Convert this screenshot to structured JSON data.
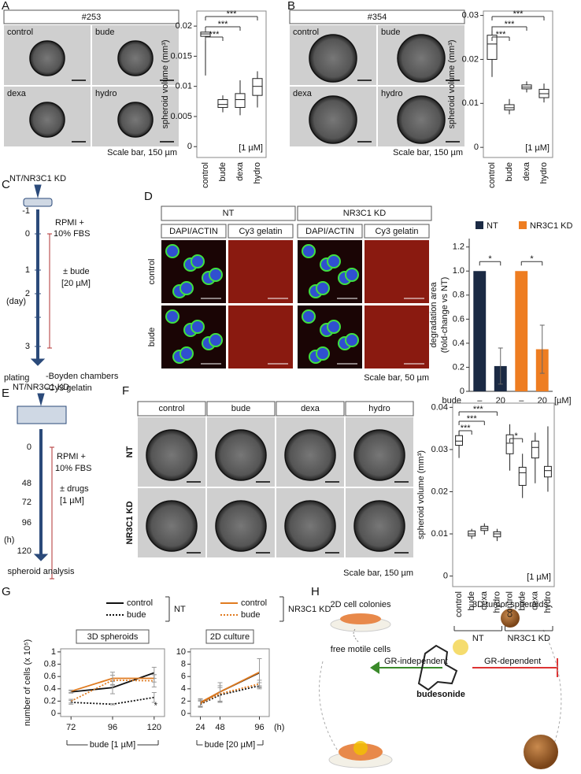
{
  "panel_labels": [
    "A",
    "B",
    "C",
    "D",
    "E",
    "F",
    "G",
    "H"
  ],
  "panels": {
    "A": {
      "id": "#253",
      "images": [
        "control",
        "bude",
        "dexa",
        "hydro"
      ],
      "scale": "Scale bar, 150 µm"
    },
    "B": {
      "id": "#354",
      "images": [
        "control",
        "bude",
        "dexa",
        "hydro"
      ],
      "scale": "Scale bar, 150 µm"
    },
    "C": {
      "top": "NT/NR3C1 KD",
      "days": [
        "-1",
        "0",
        "1",
        "2",
        "3"
      ],
      "unit": "(day)",
      "medium": [
        "RPMI +",
        "10% FBS"
      ],
      "treatment": [
        "± bude",
        "[20 µM]"
      ],
      "plating": "plating",
      "outputs": [
        "-Boyden chambers",
        "-Cy3 gelatin"
      ]
    },
    "D": {
      "headers": [
        "NT",
        "NR3C1 KD"
      ],
      "stains": [
        "DAPI/ACTIN",
        "Cy3 gelatin",
        "DAPI/ACTIN",
        "Cy3 gelatin"
      ],
      "rows": [
        "control",
        "bude"
      ],
      "scale": "Scale bar, 50 µm"
    },
    "E": {
      "top": "NT/NR3C1 KD",
      "hours": [
        "0",
        "48",
        "72",
        "96",
        "120"
      ],
      "unit": "(h)",
      "medium": [
        "RPMI +",
        "10% FBS"
      ],
      "treatment": [
        "± drugs",
        "[1 µM]"
      ],
      "output": "spheroid analysis"
    },
    "F": {
      "columns": [
        "control",
        "bude",
        "dexa",
        "hydro"
      ],
      "rows": [
        "NT",
        "NR3C1 KD"
      ],
      "scale": "Scale bar, 150 µm"
    },
    "H": {
      "left": "2D cell colonies",
      "right": "3D tumor spheroids",
      "motile": "free motile cells",
      "gr_independent": "GR-independent",
      "gr_dependent": "GR-dependent",
      "drug": "budesonide"
    }
  },
  "chart_data": [
    {
      "type": "box",
      "y_label": "spheroid volume (mm³)",
      "categories": [
        "control",
        "bude",
        "dexa",
        "hydro"
      ],
      "color": "#222222",
      "boxes": [
        {
          "low": 0.0118,
          "q1": 0.0183,
          "median": 0.0187,
          "q3": 0.019,
          "high": 0.0192
        },
        {
          "low": 0.0057,
          "q1": 0.0065,
          "median": 0.007,
          "q3": 0.0078,
          "high": 0.0085
        },
        {
          "low": 0.0052,
          "q1": 0.0065,
          "median": 0.0078,
          "q3": 0.0088,
          "high": 0.011
        },
        {
          "low": 0.0065,
          "q1": 0.0085,
          "median": 0.01,
          "q3": 0.0113,
          "high": 0.0125
        }
      ],
      "ylim": [
        -0.0018,
        0.0225
      ],
      "yticks": [
        0,
        0.005,
        0.01,
        0.015,
        0.02
      ],
      "note": "[1 µM]",
      "annotations": [
        "***",
        "***",
        "***"
      ]
    },
    {
      "type": "box",
      "y_label": "spheroid volume (mm³)",
      "categories": [
        "control",
        "bude",
        "dexa",
        "hydro"
      ],
      "color": "#222222",
      "boxes": [
        {
          "low": 0.016,
          "q1": 0.02,
          "median": 0.0235,
          "q3": 0.0255,
          "high": 0.0275
        },
        {
          "low": 0.0075,
          "q1": 0.0085,
          "median": 0.009,
          "q3": 0.0097,
          "high": 0.011
        },
        {
          "low": 0.0125,
          "q1": 0.0133,
          "median": 0.0137,
          "q3": 0.0142,
          "high": 0.015
        },
        {
          "low": 0.0102,
          "q1": 0.0113,
          "median": 0.0122,
          "q3": 0.0132,
          "high": 0.0145
        }
      ],
      "ylim": [
        -0.0023,
        0.031
      ],
      "yticks": [
        0,
        0.01,
        0.02,
        0.03
      ],
      "note": "[1 µM]",
      "annotations": [
        "***",
        "***",
        "***"
      ]
    },
    {
      "type": "bar",
      "y_label": [
        "degradation area",
        "(fold-change vs NT)"
      ],
      "x_prefix": "bude",
      "x_unit": "[µM]",
      "categories": [
        "–",
        "20"
      ],
      "series": [
        {
          "name": "NT",
          "color": "#1b2a44",
          "values": [
            1,
            0.21
          ],
          "errors": [
            0,
            0.15
          ]
        },
        {
          "name": "NR3C1 KD",
          "color": "#ee7d21",
          "values": [
            1,
            0.35
          ],
          "errors": [
            0,
            0.2
          ]
        }
      ],
      "ylim": [
        0,
        1.27
      ],
      "yticks": [
        0,
        0.2,
        0.4,
        0.6,
        0.8,
        {
          "value": 1,
          "label": "1.0"
        },
        1.2
      ],
      "annotations": [
        "*",
        "*"
      ]
    },
    {
      "type": "box",
      "y_label": "spheroid volume (mm³)",
      "categories": [
        "control",
        "bude",
        "dexa",
        "hydro"
      ],
      "color": "#222222",
      "series": [
        {
          "name": "NT",
          "boxes": [
            {
              "low": 0.028,
              "q1": 0.031,
              "median": 0.032,
              "q3": 0.0333,
              "high": 0.0345
            },
            {
              "low": 0.0088,
              "q1": 0.0095,
              "median": 0.01,
              "q3": 0.0107,
              "high": 0.0112
            },
            {
              "low": 0.0098,
              "q1": 0.0108,
              "median": 0.0113,
              "q3": 0.0118,
              "high": 0.0125
            },
            {
              "low": 0.0083,
              "q1": 0.0093,
              "median": 0.01,
              "q3": 0.0105,
              "high": 0.0112
            }
          ]
        },
        {
          "name": "NR3C1 KD",
          "boxes": [
            {
              "low": 0.025,
              "q1": 0.029,
              "median": 0.0315,
              "q3": 0.0335,
              "high": 0.036
            },
            {
              "low": 0.0185,
              "q1": 0.0215,
              "median": 0.0245,
              "q3": 0.0258,
              "high": 0.029
            },
            {
              "low": 0.022,
              "q1": 0.028,
              "median": 0.0305,
              "q3": 0.032,
              "high": 0.034
            },
            {
              "low": 0.02,
              "q1": 0.0235,
              "median": 0.025,
              "q3": 0.026,
              "high": 0.0355
            }
          ]
        }
      ],
      "ylim": [
        -0.0025,
        0.041
      ],
      "yticks": [
        0,
        0.01,
        0.02,
        0.03,
        0.04
      ],
      "note": "[1 µM]",
      "annotations": [
        "***",
        "***",
        "***",
        "*"
      ]
    },
    {
      "type": "line",
      "title": "3D spheroids",
      "y_label": "number of cells (x 10⁵)",
      "x_label": "bude [1 µM]",
      "legend_groups": [
        "NT",
        "NR3C1 KD"
      ],
      "x": [
        72,
        96,
        120
      ],
      "xlim": [
        66,
        126
      ],
      "xticks": [
        72,
        96,
        120
      ],
      "ylim": [
        -0.05,
        1.05
      ],
      "yticks": [
        0,
        0.2,
        0.4,
        0.6,
        0.8,
        1
      ],
      "series": [
        {
          "name": "control",
          "group": 0,
          "color": "#111111",
          "dashed": false,
          "values": [
            0.35,
            0.42,
            0.66
          ],
          "errors": [
            0.02,
            0.1,
            0.09
          ]
        },
        {
          "name": "bude",
          "group": 0,
          "color": "#111111",
          "dashed": true,
          "values": [
            0.18,
            0.15,
            0.26
          ],
          "errors": [
            0.03,
            0.01,
            0.08
          ]
        },
        {
          "name": "control",
          "group": 1,
          "color": "#e07b20",
          "dashed": false,
          "values": [
            0.36,
            0.57,
            0.57
          ],
          "errors": [
            0.02,
            0.1,
            0.06
          ]
        },
        {
          "name": "bude",
          "group": 1,
          "color": "#e07b20",
          "dashed": true,
          "values": [
            0.2,
            0.54,
            0.53
          ],
          "errors": [
            0.03,
            0.08,
            0.1
          ]
        }
      ],
      "annotations": [
        "*"
      ]
    },
    {
      "type": "line",
      "title": "2D culture",
      "x_label": "bude [20 µM]",
      "x_unit": "(h)",
      "x": [
        24,
        48,
        96
      ],
      "xlim": [
        12,
        108
      ],
      "xticks": [
        24,
        48,
        96
      ],
      "ylim": [
        -0.5,
        10.5
      ],
      "yticks": [
        0,
        2,
        4,
        6,
        8,
        10
      ],
      "series": [
        {
          "color": "#111111",
          "dashed": false,
          "values": [
            1.7,
            3.5,
            6.6
          ],
          "errors": [
            0.6,
            1.5,
            2.3
          ]
        },
        {
          "color": "#111111",
          "dashed": true,
          "values": [
            1.5,
            3.0,
            4.5
          ],
          "errors": [
            0.5,
            1.2,
            0.5
          ]
        },
        {
          "color": "#e07b20",
          "dashed": false,
          "values": [
            1.8,
            3.5,
            6.7
          ],
          "errors": [
            0.6,
            1.5,
            2.2
          ]
        },
        {
          "color": "#e07b20",
          "dashed": true,
          "values": [
            1.6,
            3.2,
            4.8
          ],
          "errors": [
            0.5,
            1.3,
            0.6
          ]
        }
      ]
    }
  ]
}
